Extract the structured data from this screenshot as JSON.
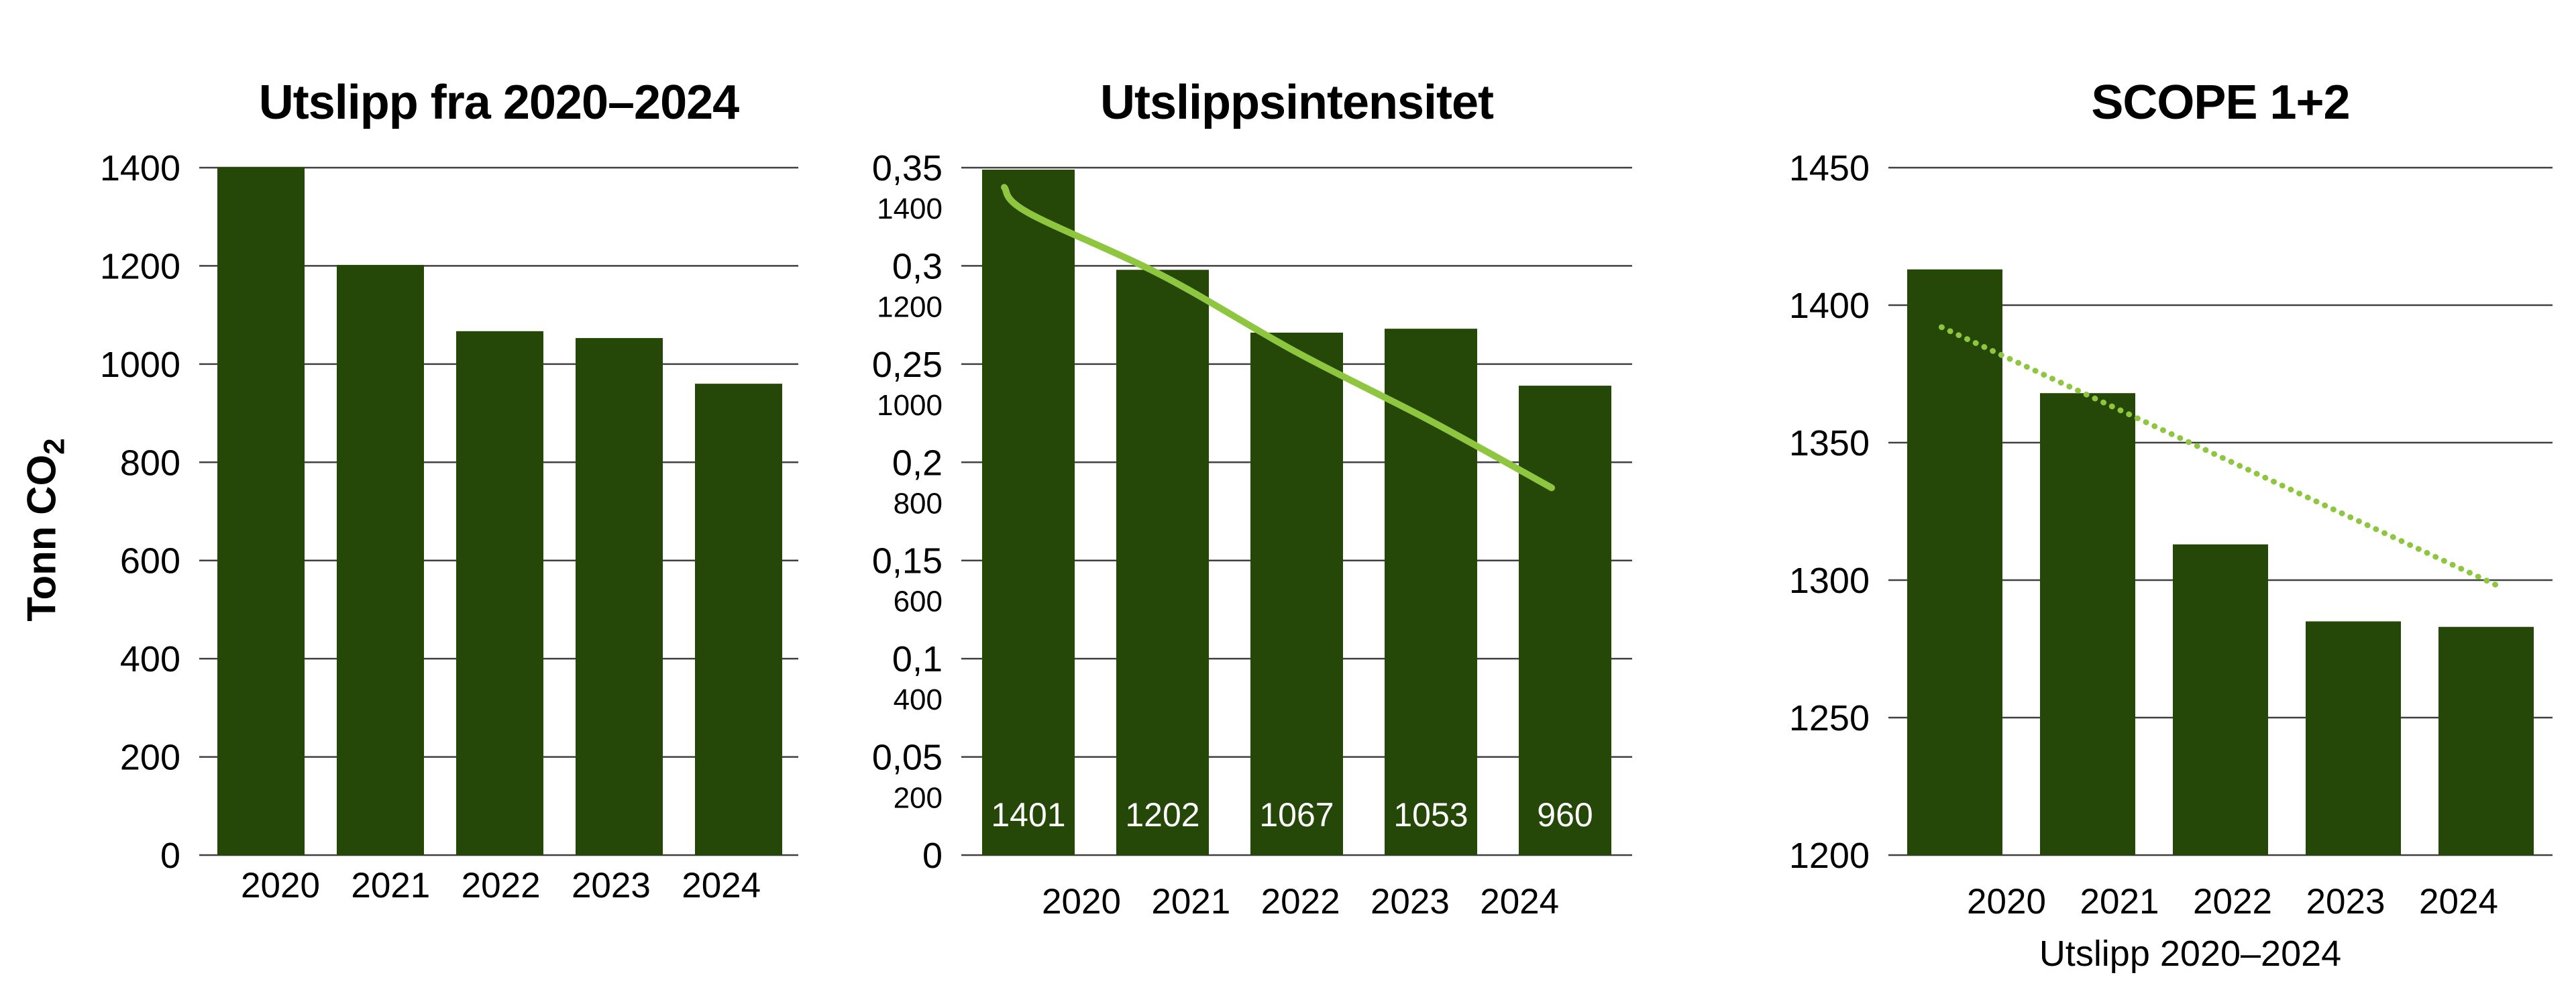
{
  "page": {
    "background": "#ffffff"
  },
  "colors": {
    "bar": "#254708",
    "trend": "#8EC63F",
    "grid": "#404040",
    "text": "#000000",
    "bar_label_text": "#ffffff"
  },
  "chart_data": [
    {
      "type": "bar",
      "title": "Utslipp fra 2020–2024",
      "y_axis_label": {
        "text": "Tonn CO",
        "subscript": "2"
      },
      "categories": [
        "2020",
        "2021",
        "2022",
        "2023",
        "2024"
      ],
      "values": [
        1401,
        1202,
        1067,
        1053,
        960
      ],
      "ylim": [
        0,
        1400
      ],
      "grid": true,
      "legend": "none",
      "yticks": [
        {
          "label": "1400",
          "value": 1400
        },
        {
          "label": "1200",
          "value": 1200
        },
        {
          "label": "1000",
          "value": 1000
        },
        {
          "label": "800",
          "value": 800
        },
        {
          "label": "600",
          "value": 600
        },
        {
          "label": "400",
          "value": 400
        },
        {
          "label": "200",
          "value": 200
        },
        {
          "label": "0",
          "value": 0
        }
      ]
    },
    {
      "type": "bar+line",
      "title": "Utslippsintensitet",
      "categories": [
        "2020",
        "2021",
        "2022",
        "2023",
        "2024"
      ],
      "values": [
        0.349,
        0.298,
        0.266,
        0.268,
        0.239
      ],
      "bar_labels": [
        "1401",
        "1202",
        "1067",
        "1053",
        "960"
      ],
      "ylim": [
        0,
        0.35
      ],
      "grid": true,
      "legend": "none",
      "yticks": [
        {
          "label": "0,35",
          "value": 0.35
        },
        {
          "label": "0,3",
          "value": 0.3
        },
        {
          "label": "0,25",
          "value": 0.25
        },
        {
          "label": "0,2",
          "value": 0.2
        },
        {
          "label": "0,15",
          "value": 0.15
        },
        {
          "label": "0,1",
          "value": 0.1
        },
        {
          "label": "0,05",
          "value": 0.05
        },
        {
          "label": "0",
          "value": 0
        }
      ],
      "secondary_yticks": [
        "1400",
        "1200",
        "1000",
        "800",
        "600",
        "400",
        "200"
      ],
      "trend": {
        "style": "solid",
        "points": [
          [
            -0.18,
            0.34
          ],
          [
            0,
            0.327
          ],
          [
            1,
            0.295
          ],
          [
            2,
            0.256
          ],
          [
            3,
            0.221
          ],
          [
            3.9,
            0.187
          ]
        ]
      }
    },
    {
      "type": "bar+line",
      "title": "SCOPE 1+2",
      "x_axis_label": "Utslipp 2020–2024",
      "categories": [
        "2020",
        "2021",
        "2022",
        "2023",
        "2024"
      ],
      "values": [
        1413,
        1368,
        1313,
        1285,
        1283
      ],
      "ylim": [
        1200,
        1450
      ],
      "grid": true,
      "legend": "none",
      "yticks": [
        {
          "label": "1450",
          "value": 1450
        },
        {
          "label": "1400",
          "value": 1400
        },
        {
          "label": "1350",
          "value": 1350
        },
        {
          "label": "1300",
          "value": 1300
        },
        {
          "label": "1250",
          "value": 1250
        },
        {
          "label": "1200",
          "value": 1200
        }
      ],
      "trend": {
        "style": "dotted",
        "points": [
          [
            -0.1,
            1392
          ],
          [
            4.13,
            1297
          ]
        ]
      }
    }
  ]
}
